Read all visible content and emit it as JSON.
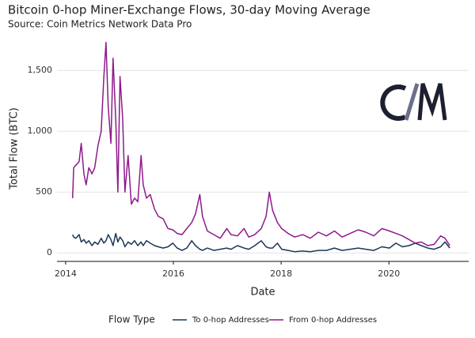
{
  "chart_data": {
    "type": "line",
    "title": "Bitcoin 0-hop Miner-Exchange Flows, 30-day Moving Average",
    "subtitle": "Source: Coin Metrics Network Data Pro",
    "x_label": "Date",
    "y_label": "Total Flow (BTC)",
    "legend_title": "Flow Type",
    "legend": "bottom",
    "grid": true,
    "xlim": [
      2013.84,
      2021.48
    ],
    "xticks": [
      2014,
      2016,
      2018,
      2020
    ],
    "ylim": [
      -70,
      1800
    ],
    "yticks": [
      0,
      500,
      {
        "value": 1000,
        "label": "1,000"
      },
      {
        "value": 1500,
        "label": "1,500"
      }
    ],
    "x": [
      2014.13,
      2014.15,
      2014.19,
      2014.25,
      2014.29,
      2014.34,
      2014.38,
      2014.43,
      2014.49,
      2014.54,
      2014.6,
      2014.66,
      2014.71,
      2014.75,
      2014.79,
      2014.84,
      2014.88,
      2014.93,
      2014.97,
      2015.01,
      2015.06,
      2015.1,
      2015.16,
      2015.22,
      2015.28,
      2015.34,
      2015.4,
      2015.44,
      2015.5,
      2015.57,
      2015.65,
      2015.72,
      2015.81,
      2015.9,
      2015.99,
      2016.07,
      2016.16,
      2016.25,
      2016.34,
      2016.41,
      2016.49,
      2016.54,
      2016.63,
      2016.75,
      2016.87,
      2016.99,
      2017.07,
      2017.19,
      2017.31,
      2017.4,
      2017.51,
      2017.63,
      2017.72,
      2017.78,
      2017.84,
      2017.93,
      2018.01,
      2018.13,
      2018.25,
      2018.4,
      2018.54,
      2018.69,
      2018.84,
      2018.99,
      2019.13,
      2019.28,
      2019.43,
      2019.57,
      2019.72,
      2019.87,
      2020.01,
      2020.13,
      2020.25,
      2020.37,
      2020.49,
      2020.6,
      2020.72,
      2020.84,
      2020.96,
      2021.04,
      2021.13
    ],
    "series": [
      {
        "name": "To 0-hop Addresses",
        "color": "#1c3557",
        "values": [
          150,
          130,
          120,
          150,
          90,
          110,
          80,
          100,
          60,
          90,
          70,
          120,
          80,
          100,
          150,
          110,
          60,
          160,
          90,
          130,
          100,
          50,
          90,
          70,
          100,
          60,
          90,
          60,
          100,
          80,
          60,
          50,
          40,
          50,
          80,
          40,
          20,
          40,
          100,
          60,
          30,
          20,
          40,
          20,
          30,
          40,
          30,
          60,
          40,
          30,
          60,
          100,
          50,
          40,
          40,
          80,
          30,
          20,
          10,
          15,
          10,
          20,
          20,
          40,
          20,
          30,
          40,
          30,
          20,
          50,
          40,
          80,
          50,
          60,
          80,
          60,
          40,
          30,
          50,
          90,
          40
        ]
      },
      {
        "name": "From 0-hop Addresses",
        "color": "#8e1a8c",
        "values": [
          450,
          700,
          720,
          750,
          900,
          650,
          560,
          700,
          650,
          700,
          880,
          1000,
          1450,
          1730,
          1200,
          900,
          1600,
          1100,
          500,
          1450,
          1100,
          500,
          800,
          400,
          450,
          420,
          800,
          560,
          450,
          480,
          360,
          300,
          280,
          200,
          190,
          160,
          150,
          200,
          250,
          320,
          480,
          300,
          180,
          150,
          120,
          200,
          150,
          140,
          200,
          130,
          150,
          200,
          300,
          500,
          350,
          250,
          200,
          160,
          130,
          150,
          120,
          170,
          140,
          180,
          130,
          160,
          190,
          170,
          140,
          200,
          180,
          160,
          140,
          110,
          80,
          90,
          60,
          70,
          140,
          120,
          60
        ]
      }
    ]
  }
}
